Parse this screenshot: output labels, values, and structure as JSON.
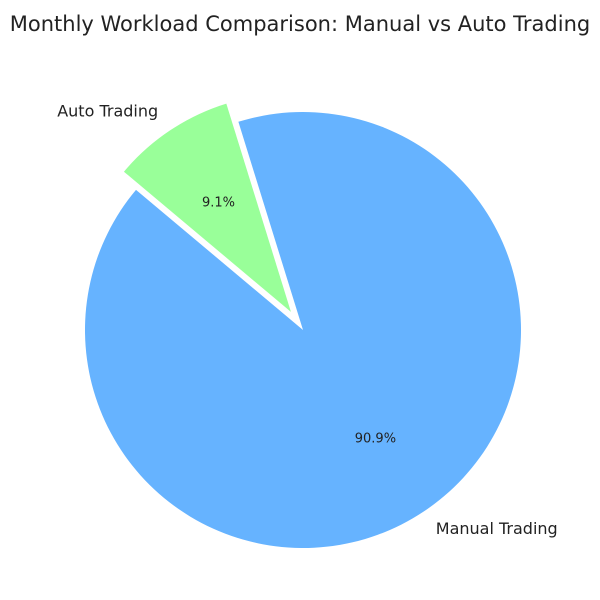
{
  "chart_data": {
    "type": "pie",
    "title": "Monthly Workload Comparison: Manual vs Auto Trading",
    "categories": [
      "Manual Trading",
      "Auto Trading"
    ],
    "values": [
      90.9,
      9.1
    ],
    "value_labels": [
      "90.9%",
      "9.1%"
    ],
    "colors": [
      "#66b3ff",
      "#99ff99"
    ]
  }
}
